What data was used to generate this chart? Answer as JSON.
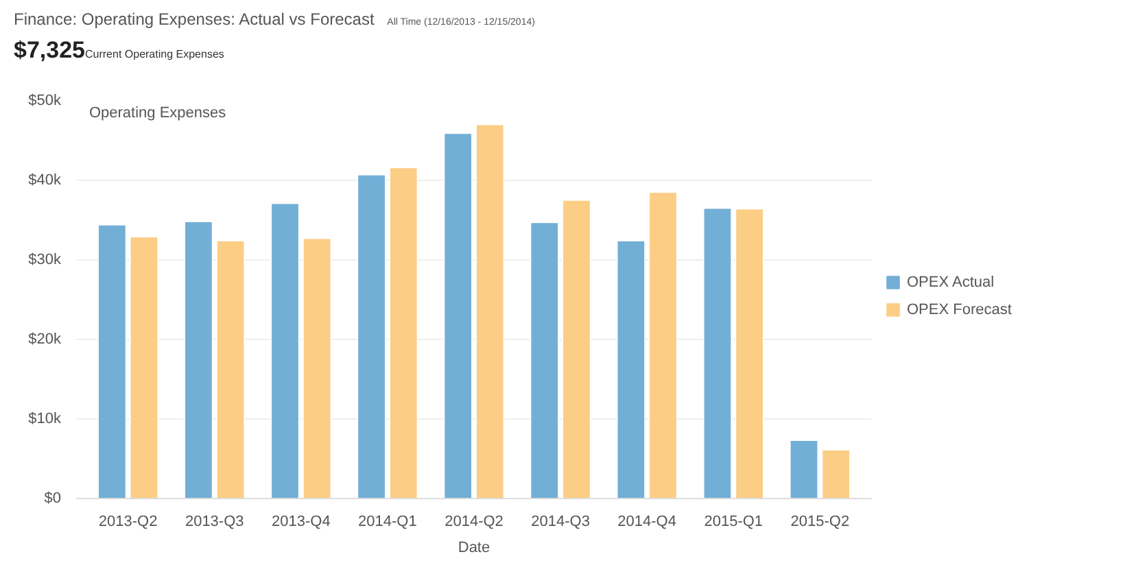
{
  "chart_data": {
    "type": "bar",
    "title": "Finance: Operating Expenses: Actual vs Forecast",
    "subtitle": "All Time (12/16/2013 - 12/15/2014)",
    "annotations": [
      "$7,325",
      "Current Operating Expenses",
      "Operating Expenses"
    ],
    "xlabel": "Date",
    "categories": [
      "2013-Q2",
      "2013-Q3",
      "2013-Q4",
      "2014-Q1",
      "2014-Q2",
      "2014-Q3",
      "2014-Q4",
      "2015-Q1",
      "2015-Q2"
    ],
    "series": [
      {
        "name": "OPEX Actual",
        "color": "#72afd6",
        "values": [
          34400,
          34800,
          37100,
          40700,
          45900,
          34700,
          32400,
          36500,
          7300
        ]
      },
      {
        "name": "OPEX Forecast",
        "color": "#fccd85",
        "values": [
          32900,
          32400,
          32700,
          41600,
          47000,
          37500,
          38500,
          36400,
          6100
        ]
      }
    ],
    "ylim": [
      0,
      50000
    ],
    "yticks": [
      {
        "value": 0,
        "label": "$0"
      },
      {
        "value": 10000,
        "label": "$10k"
      },
      {
        "value": 20000,
        "label": "$20k"
      },
      {
        "value": 30000,
        "label": "$30k"
      },
      {
        "value": 40000,
        "label": "$40k"
      },
      {
        "value": 50000,
        "label": "$50k"
      }
    ],
    "grid": "y",
    "legend": "right"
  }
}
